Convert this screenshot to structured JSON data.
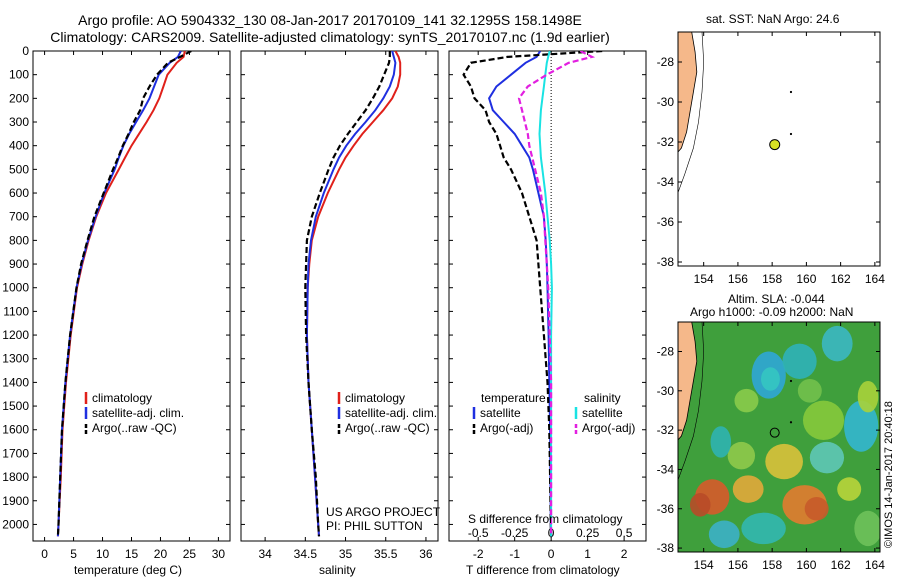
{
  "header": {
    "line1": "Argo profile: AO 5904332_130 08-Jan-2017 20170109_141 32.1295S 158.1498E",
    "line2": "Climatology: CARS2009. Satellite-adjusted climatology: synTS_20170107.nc (1.9d earlier)"
  },
  "panels": {
    "temperature": {
      "xlabel": "temperature (deg C)",
      "xticks": [
        0,
        5,
        10,
        15,
        20,
        25,
        30
      ],
      "xlim": [
        -2,
        32
      ],
      "legend": [
        "climatology",
        "satellite-adj. clim.",
        "Argo(..raw -QC)"
      ]
    },
    "salinity": {
      "xlabel": "salinity",
      "xticks": [
        34,
        34.5,
        35,
        35.5,
        36
      ],
      "xlim": [
        33.7,
        36.15
      ],
      "legend": [
        "climatology",
        "satellite-adj. clim.",
        "Argo(..raw -QC)"
      ],
      "credit1": "US ARGO PROJECT",
      "credit2": "PI: PHIL SUTTON"
    },
    "difference": {
      "xlabel": "T difference from climatology",
      "toplabel": "S difference from climatology",
      "xticks": [
        -2,
        -1,
        0,
        1,
        2
      ],
      "xtick_labels": [
        "-2",
        "-1",
        "0",
        "1",
        "2"
      ],
      "sticks": [
        "-0.5",
        "-0.25",
        "0",
        "0.25",
        "0.5"
      ],
      "xlim": [
        -2.8,
        2.6
      ],
      "legend_temp_title": "temperature",
      "legend_sal_title": "salinity",
      "legend_temp": [
        "satellite",
        "Argo(-adj)"
      ],
      "legend_sal": [
        "satellite",
        "Argo(-adj)"
      ]
    },
    "depth_axis": {
      "ylim": [
        0,
        2070
      ],
      "yticks": [
        0,
        100,
        200,
        300,
        400,
        500,
        600,
        700,
        800,
        900,
        1000,
        1100,
        1200,
        1300,
        1400,
        1500,
        1600,
        1700,
        1800,
        1900,
        2000
      ]
    }
  },
  "maps": {
    "sst": {
      "title": "sat. SST: NaN Argo: 24.6",
      "xticks": [
        154,
        156,
        158,
        160,
        162,
        164
      ],
      "yticks": [
        -28,
        -30,
        -32,
        -34,
        -36,
        -38
      ],
      "xlim": [
        152.5,
        164.3
      ],
      "ylim": [
        -38.2,
        -26.5
      ]
    },
    "sla": {
      "title1": "Altim. SLA: -0.044",
      "title2": "Argo h1000: -0.09 h2000: NaN",
      "xticks": [
        154,
        156,
        158,
        160,
        162,
        164
      ],
      "yticks": [
        -28,
        -30,
        -32,
        -34,
        -36,
        -38
      ],
      "xlim": [
        152.5,
        164.3
      ],
      "ylim": [
        -38.2,
        -26.5
      ]
    },
    "float_position": {
      "lon": 158.15,
      "lat": -32.13
    },
    "side_credit": "©IMOS 14-Jan-2017 20:40:18"
  },
  "colors": {
    "climatology": "#e0201a",
    "satellite": "#1f2fe0",
    "argo": "#000000",
    "salinity_satellite": "#19e3e3",
    "salinity_argo": "#e21fe0",
    "land": "#f5b88a",
    "marker": "#d8e024"
  },
  "chart_data": [
    {
      "type": "line",
      "title": "",
      "xlabel": "temperature (deg C)",
      "ylabel": "",
      "xlim": [
        -2,
        32
      ],
      "ylim": [
        0,
        2070
      ],
      "y_axis_reversed": true,
      "depth": [
        0,
        25,
        50,
        100,
        150,
        200,
        250,
        300,
        350,
        400,
        450,
        500,
        600,
        700,
        800,
        900,
        1000,
        1200,
        1400,
        1600,
        1800,
        2000,
        2050
      ],
      "series": [
        {
          "name": "climatology",
          "color": "#e0201a",
          "values": [
            24.2,
            24.0,
            22.8,
            21.2,
            20.5,
            19.8,
            18.8,
            17.6,
            16.3,
            15.0,
            13.9,
            12.8,
            10.6,
            8.9,
            7.6,
            6.5,
            5.6,
            4.5,
            3.7,
            3.1,
            2.8,
            2.4,
            2.3
          ]
        },
        {
          "name": "satellite-adj. clim.",
          "color": "#1f2fe0",
          "values": [
            23.5,
            23.0,
            21.6,
            19.7,
            18.9,
            18.1,
            17.0,
            15.8,
            14.6,
            13.6,
            12.8,
            12.1,
            10.3,
            8.8,
            7.5,
            6.4,
            5.5,
            4.4,
            3.6,
            3.0,
            2.7,
            2.4,
            2.3
          ]
        },
        {
          "name": "Argo(..raw -QC)",
          "color": "#000000",
          "dashed": true,
          "values": [
            25.3,
            23.4,
            21.3,
            19.4,
            18.1,
            17.0,
            16.5,
            15.4,
            14.5,
            13.5,
            12.7,
            11.8,
            10.2,
            8.6,
            7.4,
            6.3,
            5.5,
            4.4,
            3.6,
            3.0,
            2.7,
            2.4,
            2.3
          ]
        }
      ]
    },
    {
      "type": "line",
      "title": "",
      "xlabel": "salinity",
      "ylabel": "",
      "xlim": [
        33.7,
        36.15
      ],
      "ylim": [
        0,
        2070
      ],
      "y_axis_reversed": true,
      "depth": [
        0,
        25,
        50,
        100,
        150,
        200,
        250,
        300,
        350,
        400,
        450,
        500,
        600,
        700,
        800,
        900,
        1000,
        1200,
        1400,
        1600,
        1800,
        2000,
        2050
      ],
      "series": [
        {
          "name": "climatology",
          "color": "#e0201a",
          "values": [
            35.62,
            35.66,
            35.68,
            35.68,
            35.65,
            35.58,
            35.47,
            35.34,
            35.21,
            35.1,
            35.0,
            34.92,
            34.78,
            34.66,
            34.58,
            34.55,
            34.53,
            34.52,
            34.54,
            34.58,
            34.62,
            34.66,
            34.67
          ]
        },
        {
          "name": "satellite-adj. clim.",
          "color": "#1f2fe0",
          "values": [
            35.58,
            35.6,
            35.62,
            35.6,
            35.55,
            35.47,
            35.37,
            35.25,
            35.12,
            35.01,
            34.92,
            34.85,
            34.73,
            34.63,
            34.57,
            34.54,
            34.53,
            34.52,
            34.54,
            34.58,
            34.62,
            34.66,
            34.67
          ]
        },
        {
          "name": "Argo(..raw -QC)",
          "color": "#000000",
          "dashed": true,
          "values": [
            35.55,
            35.55,
            35.54,
            35.48,
            35.42,
            35.34,
            35.25,
            35.14,
            35.03,
            34.93,
            34.85,
            34.79,
            34.68,
            34.58,
            34.52,
            34.51,
            34.5,
            34.51,
            34.54,
            34.58,
            34.63,
            34.66,
            34.67
          ]
        }
      ]
    },
    {
      "type": "line",
      "title": "",
      "xlabel": "T difference from climatology",
      "x2label": "S difference from climatology",
      "ylabel": "",
      "xlim": [
        -2.8,
        2.6
      ],
      "ylim": [
        0,
        2070
      ],
      "y_axis_reversed": true,
      "depth": [
        0,
        25,
        50,
        100,
        150,
        200,
        250,
        300,
        350,
        400,
        450,
        500,
        600,
        700,
        800,
        900,
        1000,
        1200,
        1400,
        1600,
        1800,
        2000,
        2050
      ],
      "series": [
        {
          "name": "temperature satellite",
          "color": "#1f2fe0",
          "values": [
            -0.3,
            -0.4,
            -0.7,
            -1.1,
            -1.5,
            -1.7,
            -1.6,
            -1.3,
            -1.0,
            -0.8,
            -0.6,
            -0.5,
            -0.35,
            -0.2,
            -0.15,
            -0.12,
            -0.1,
            -0.07,
            -0.05,
            -0.03,
            -0.02,
            -0.01,
            0
          ]
        },
        {
          "name": "temperature Argo(-adj)",
          "color": "#000000",
          "dashed": true,
          "values": [
            1.4,
            -1.2,
            -2.2,
            -2.4,
            -2.2,
            -2.1,
            -1.8,
            -1.7,
            -1.5,
            -1.4,
            -1.3,
            -1.1,
            -0.8,
            -0.6,
            -0.4,
            -0.35,
            -0.3,
            -0.2,
            -0.1,
            -0.05,
            -0.03,
            -0.01,
            0
          ]
        },
        {
          "name": "salinity satellite",
          "color": "#19e3e3",
          "values": [
            -0.01,
            -0.02,
            -0.03,
            -0.04,
            -0.05,
            -0.06,
            -0.07,
            -0.075,
            -0.08,
            -0.075,
            -0.07,
            -0.06,
            -0.04,
            -0.025,
            -0.01,
            0,
            0.005,
            0,
            0,
            0,
            0,
            0,
            0
          ]
        },
        {
          "name": "salinity Argo(-adj)",
          "color": "#e21fe0",
          "dashed": true,
          "values": [
            0.2,
            0.28,
            0.12,
            -0.03,
            -0.16,
            -0.22,
            -0.2,
            -0.18,
            -0.16,
            -0.15,
            -0.13,
            -0.11,
            -0.07,
            -0.05,
            -0.04,
            -0.03,
            -0.02,
            -0.01,
            0,
            0,
            0,
            0,
            0
          ]
        }
      ]
    }
  ]
}
